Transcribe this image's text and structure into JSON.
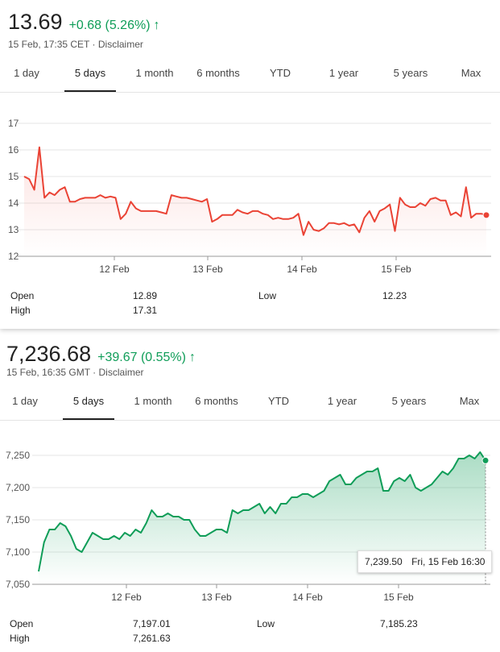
{
  "quotes": [
    {
      "price": "13.69",
      "change": "+0.68 (5.26%)",
      "timestamp": "15 Feb, 17:35 CET",
      "disclaimer": "Disclaimer",
      "tabs": [
        "1 day",
        "5 days",
        "1 month",
        "6 months",
        "YTD",
        "1 year",
        "5 years",
        "Max"
      ],
      "active_tab": "5 days",
      "color": "#ea4335",
      "stats": {
        "open_label": "Open",
        "open_value": "12.89",
        "high_label": "High",
        "high_value": "17.31",
        "low_label": "Low",
        "low_value": "12.23"
      }
    },
    {
      "price": "7,236.68",
      "change": "+39.67 (0.55%)",
      "timestamp": "15 Feb, 16:35 GMT",
      "disclaimer": "Disclaimer",
      "tabs": [
        "1 day",
        "5 days",
        "1 month",
        "6 months",
        "YTD",
        "1 year",
        "5 years",
        "Max"
      ],
      "active_tab": "5 days",
      "color": "#0f9d58",
      "stats": {
        "open_label": "Open",
        "open_value": "7,197.01",
        "high_label": "High",
        "high_value": "7,261.63",
        "low_label": "Low",
        "low_value": "7,185.23"
      },
      "tooltip": {
        "value": "7,239.50",
        "time": "Fri, 15 Feb 16:30"
      }
    }
  ],
  "chart_data": [
    {
      "type": "line",
      "x_ticks": [
        "12 Feb",
        "13 Feb",
        "14 Feb",
        "15 Feb"
      ],
      "y_ticks": [
        "12",
        "13",
        "14",
        "15",
        "16",
        "17"
      ],
      "ylim": [
        12,
        17
      ],
      "series": [
        {
          "values": [
            15.0,
            14.9,
            14.5,
            16.1,
            14.2,
            14.4,
            14.3,
            14.5,
            14.6,
            14.05,
            14.05,
            14.15,
            14.2,
            14.2,
            14.2,
            14.3,
            14.2,
            14.25,
            14.2,
            13.4,
            13.6,
            14.05,
            13.8,
            13.7,
            13.7,
            13.7,
            13.7,
            13.65,
            13.6,
            14.3,
            14.25,
            14.2,
            14.2,
            14.15,
            14.1,
            14.05,
            14.15,
            13.3,
            13.4,
            13.55,
            13.55,
            13.55,
            13.75,
            13.65,
            13.6,
            13.7,
            13.7,
            13.6,
            13.55,
            13.4,
            13.45,
            13.4,
            13.4,
            13.45,
            13.6,
            12.8,
            13.3,
            13.0,
            12.95,
            13.05,
            13.25,
            13.25,
            13.2,
            13.25,
            13.15,
            13.2,
            12.9,
            13.45,
            13.7,
            13.3,
            13.7,
            13.8,
            13.95,
            12.95,
            14.2,
            13.95,
            13.85,
            13.85,
            14.0,
            13.9,
            14.15,
            14.2,
            14.1,
            14.1,
            13.55,
            13.65,
            13.5,
            14.6,
            13.45,
            13.6,
            13.6,
            13.55
          ]
        }
      ]
    },
    {
      "type": "area",
      "x_ticks": [
        "12 Feb",
        "13 Feb",
        "14 Feb",
        "15 Feb"
      ],
      "y_ticks": [
        "7,050",
        "7,100",
        "7,150",
        "7,200",
        "7,250"
      ],
      "ylim": [
        7050,
        7250
      ],
      "series": [
        {
          "values": [
            7070,
            7115,
            7135,
            7135,
            7145,
            7140,
            7125,
            7105,
            7100,
            7115,
            7130,
            7125,
            7120,
            7120,
            7125,
            7120,
            7130,
            7125,
            7135,
            7130,
            7145,
            7165,
            7155,
            7155,
            7160,
            7155,
            7155,
            7150,
            7150,
            7135,
            7125,
            7125,
            7130,
            7135,
            7135,
            7130,
            7165,
            7160,
            7165,
            7165,
            7170,
            7175,
            7160,
            7170,
            7160,
            7175,
            7175,
            7185,
            7185,
            7190,
            7190,
            7185,
            7190,
            7195,
            7210,
            7215,
            7220,
            7205,
            7205,
            7215,
            7220,
            7225,
            7225,
            7230,
            7195,
            7195,
            7210,
            7215,
            7210,
            7220,
            7200,
            7195,
            7200,
            7205,
            7215,
            7225,
            7220,
            7230,
            7245,
            7245,
            7250,
            7245,
            7255,
            7242
          ]
        }
      ]
    }
  ]
}
